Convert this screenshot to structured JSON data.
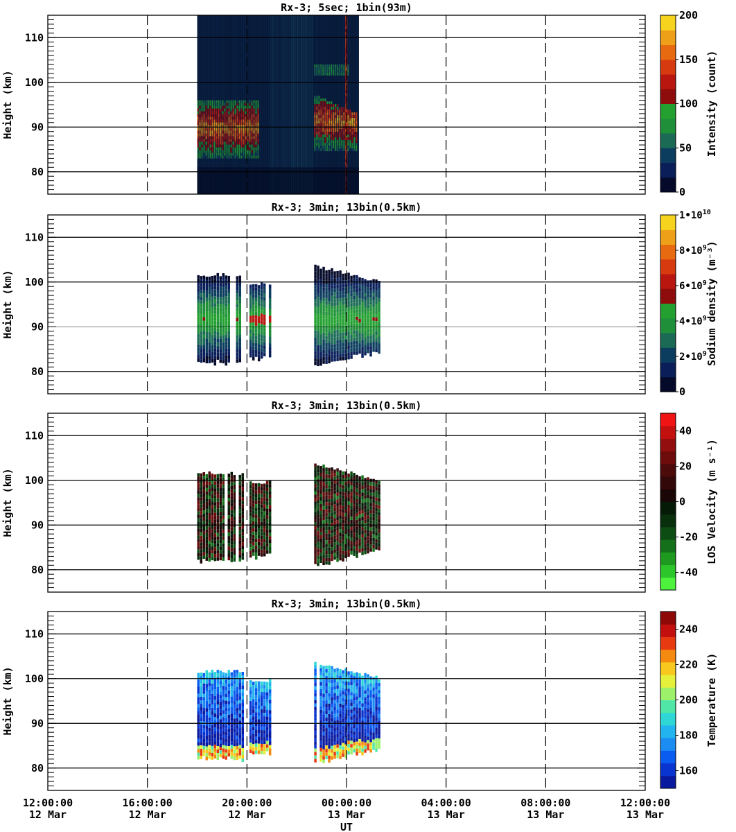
{
  "chart_data": [
    {
      "type": "heatmap",
      "title": "Rx-3;  5sec; 1bin(93m)",
      "ylabel": "Height (km)",
      "ylim": [
        75,
        115
      ],
      "y_ticks": [
        "80",
        "90",
        "100",
        "110"
      ],
      "xlim_hours": [
        0,
        24
      ],
      "colorbar": {
        "label": "Intensity (count)",
        "range": [
          0,
          200
        ],
        "ticks": [
          "0",
          "50",
          "100",
          "150",
          "200"
        ],
        "colors": [
          "#050a2a",
          "#0a1f5a",
          "#0c3d5e",
          "#1a6a55",
          "#1f8f3a",
          "#23a030",
          "#8e0c0c",
          "#b8160f",
          "#d83a10",
          "#e86a10",
          "#eea018",
          "#f6d41e"
        ]
      },
      "data_extent_hours": [
        6,
        12.5
      ],
      "features": [
        {
          "name": "sodium-layer-early",
          "x_hours": [
            6,
            8.5
          ],
          "y_km": [
            83,
            96
          ],
          "level": "high"
        },
        {
          "name": "sodium-layer-late",
          "x_hours": [
            10.7,
            12.4
          ],
          "y_km": [
            85,
            97
          ],
          "level": "high"
        },
        {
          "name": "upper-echo",
          "x_hours": [
            10.7,
            12.1
          ],
          "y_km": [
            102,
            104
          ],
          "level": "low"
        },
        {
          "name": "bright-edge",
          "x_hours": [
            11.95,
            12.05
          ],
          "y_km": [
            75,
            115
          ],
          "level": "high"
        }
      ]
    },
    {
      "type": "heatmap",
      "title": "Rx-3; 3min; 13bin(0.5km)",
      "ylabel": "Height (km)",
      "ylim": [
        75,
        115
      ],
      "y_ticks": [
        "80",
        "90",
        "100",
        "110"
      ],
      "xlim_hours": [
        0,
        24
      ],
      "colorbar": {
        "label": "Sodium density (m⁻³)",
        "range": [
          0,
          10000000000
        ],
        "ticks": [
          "0",
          "2•109",
          "4•109",
          "6•109",
          "8•109",
          "1•1010"
        ],
        "colors": [
          "#050a2a",
          "#0a1f5a",
          "#0c3d5e",
          "#1a6a55",
          "#1f8f3a",
          "#23a030",
          "#8e0c0c",
          "#b8160f",
          "#d83a10",
          "#e86a10",
          "#eea018",
          "#f6d41e"
        ]
      },
      "segments": [
        {
          "x_hours": [
            6.0,
            7.8
          ],
          "y_km": [
            82,
            102
          ]
        },
        {
          "x_hours": [
            8.1,
            8.9
          ],
          "y_km": [
            83,
            100
          ]
        },
        {
          "x_hours": [
            10.7,
            13.3
          ],
          "y_km": [
            81,
            104
          ]
        }
      ],
      "peak_km": 92
    },
    {
      "type": "heatmap",
      "title": "Rx-3; 3min; 13bin(0.5km)",
      "ylabel": "Height (km)",
      "ylim": [
        75,
        115
      ],
      "y_ticks": [
        "80",
        "90",
        "100",
        "110"
      ],
      "xlim_hours": [
        0,
        24
      ],
      "colorbar": {
        "label": "LOS Velocity (m s⁻¹)",
        "range": [
          -50,
          50
        ],
        "ticks": [
          "-40",
          "-20",
          "0",
          "20",
          "40"
        ],
        "colors": [
          "#4cf23c",
          "#2cc52a",
          "#1e9a1e",
          "#14701a",
          "#0d4d14",
          "#08300c",
          "#061a08",
          "#1a0606",
          "#330808",
          "#4d0a0a",
          "#6e0c0c",
          "#930e0e",
          "#c40f0f",
          "#f01414"
        ]
      },
      "segments": [
        {
          "x_hours": [
            6.0,
            7.8
          ],
          "y_km": [
            82,
            102
          ]
        },
        {
          "x_hours": [
            8.1,
            8.9
          ],
          "y_km": [
            83,
            100
          ]
        },
        {
          "x_hours": [
            10.7,
            13.3
          ],
          "y_km": [
            81,
            104
          ]
        }
      ]
    },
    {
      "type": "heatmap",
      "title": "Rx-3; 3min; 13bin(0.5km)",
      "ylabel": "Height (km)",
      "ylim": [
        75,
        115
      ],
      "y_ticks": [
        "80",
        "90",
        "100",
        "110"
      ],
      "xlim_hours": [
        0,
        24
      ],
      "xlabel": "UT",
      "x_ticks": [
        {
          "time": "12:00:00",
          "date": "12 Mar"
        },
        {
          "time": "16:00:00",
          "date": "12 Mar"
        },
        {
          "time": "20:00:00",
          "date": "12 Mar"
        },
        {
          "time": "00:00:00",
          "date": "13 Mar"
        },
        {
          "time": "04:00:00",
          "date": "13 Mar"
        },
        {
          "time": "08:00:00",
          "date": "13 Mar"
        },
        {
          "time": "12:00:00",
          "date": "13 Mar"
        }
      ],
      "colorbar": {
        "label": "Temperature (K)",
        "range": [
          150,
          250
        ],
        "ticks": [
          "160",
          "180",
          "200",
          "220",
          "240"
        ],
        "colors": [
          "#0a1a9e",
          "#0a34d0",
          "#0a5cf0",
          "#1a8cf2",
          "#22b4ee",
          "#2ed6d6",
          "#50e6a8",
          "#9cf06a",
          "#e4f03a",
          "#f8c81e",
          "#f48a10",
          "#e83a10",
          "#c40f0f",
          "#8e0808"
        ]
      },
      "segments": [
        {
          "x_hours": [
            6.0,
            7.8
          ],
          "y_km": [
            82,
            102
          ]
        },
        {
          "x_hours": [
            8.1,
            8.9
          ],
          "y_km": [
            83,
            100
          ]
        },
        {
          "x_hours": [
            10.7,
            13.3
          ],
          "y_km": [
            81,
            104
          ]
        }
      ],
      "cold_top_warm_bottom": true
    }
  ]
}
